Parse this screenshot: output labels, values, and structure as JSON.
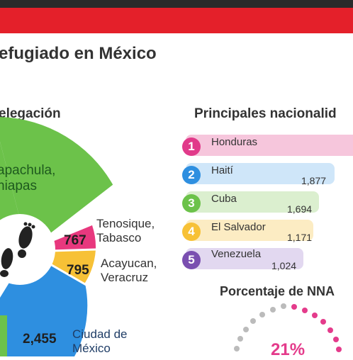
{
  "header": {
    "title": "efugiado en México"
  },
  "left_section": {
    "heading": "elegación",
    "slices": [
      {
        "name": "apachula,",
        "name2": "hiapas",
        "value": "",
        "color": "#6cc24a"
      },
      {
        "name": "Tenosique,",
        "name2": "Tabasco",
        "value": "767",
        "color": "#e8387e"
      },
      {
        "name": "Acayucan,",
        "name2": "Veracruz",
        "value": "795",
        "color": "#f7c136"
      },
      {
        "name": "Ciudad de",
        "name2": "México",
        "value": "2,455",
        "color": "#2e8fe0"
      }
    ],
    "center_icon": "footprints-icon"
  },
  "right_section": {
    "heading": "Principales nacionalid",
    "nationalities": [
      {
        "rank": "1",
        "name": "Honduras",
        "value": "",
        "rank_color": "#e13a8a",
        "bar_color": "#f6c6dc"
      },
      {
        "rank": "2",
        "name": "Haití",
        "value": "1,877",
        "rank_color": "#2e8fe0",
        "bar_color": "#cfe6f9"
      },
      {
        "rank": "3",
        "name": "Cuba",
        "value": "1,694",
        "rank_color": "#6cc24a",
        "bar_color": "#dbefcf"
      },
      {
        "rank": "4",
        "name": "El Salvador",
        "value": "1,171",
        "rank_color": "#f7c136",
        "bar_color": "#fcecc3"
      },
      {
        "rank": "5",
        "name": "Venezuela",
        "value": "1,024",
        "rank_color": "#7a4fb0",
        "bar_color": "#e2d8f0"
      }
    ],
    "nna_heading": "Porcentaje de NNA",
    "nna_percent": "21%"
  }
}
